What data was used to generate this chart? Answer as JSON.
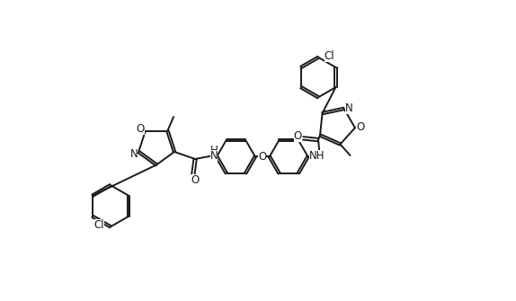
{
  "bg_color": "#ffffff",
  "line_color": "#1a1a1a",
  "line_width": 1.4,
  "font_size": 8.5,
  "xlim": [
    0,
    10
  ],
  "ylim": [
    0,
    5.8
  ]
}
